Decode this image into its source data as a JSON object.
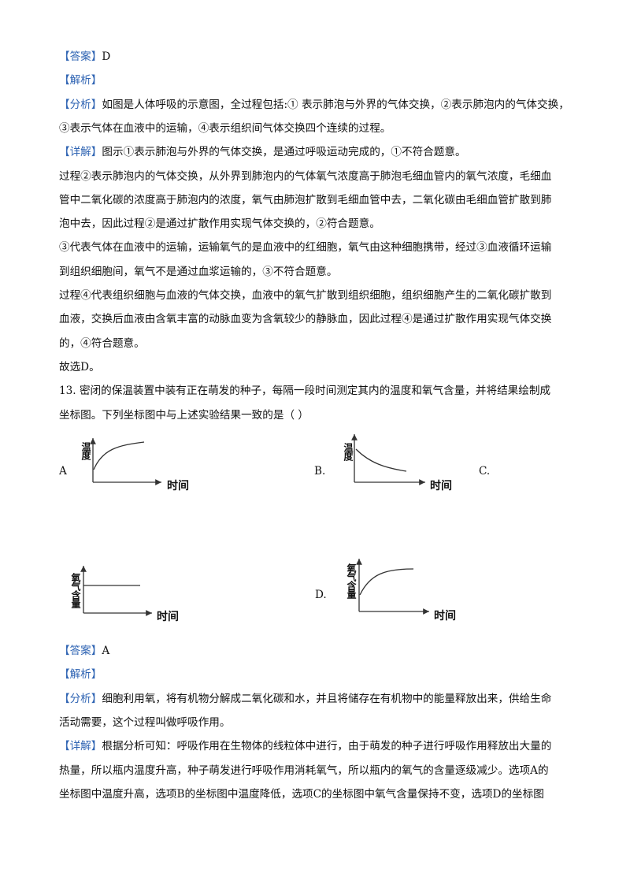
{
  "lines_before": [
    {
      "tag": "【答案】",
      "text": "D"
    },
    {
      "tag": "【解析】"
    },
    {
      "tag": "【分析】",
      "text": "如图是人体呼吸的示意图，全过程包括:① 表示肺泡与外界的气体交换，②表示肺泡内的气体交换，"
    },
    {
      "text": "③表示气体在血液中的运输，④表示组织间气体交换四个连续的过程。"
    },
    {
      "tag": "【详解】",
      "text": "图示①表示肺泡与外界的气体交换，是通过呼吸运动完成的，①不符合题意。"
    },
    {
      "text": "过程②表示肺泡内的气体交换，从外界到肺泡内的气体氧气浓度高于肺泡毛细血管内的氧气浓度，毛细血"
    },
    {
      "text": "管中二氧化碳的浓度高于肺泡内的浓度，氧气由肺泡扩散到毛细血管中去，二氧化碳由毛细血管扩散到肺"
    },
    {
      "text": "泡中去，因此过程②是通过扩散作用实现气体交换的，②符合题意。"
    },
    {
      "text": "③代表气体在血液中的运输，运输氧气的是血液中的红细胞，氧气由这种细胞携带，经过③血液循环运输"
    },
    {
      "text": "到组织细胞间，氧气不是通过血浆运输的，③不符合题意。"
    },
    {
      "text": "过程④代表组织细胞与血液的气体交换，血液中的氧气扩散到组织细胞，组织细胞产生的二氧化碳扩散到"
    },
    {
      "text": "血液，交换后血液由含氧丰富的动脉血变为含氧较少的静脉血，因此过程④是通过扩散作用实现气体交换"
    },
    {
      "text": "的，④符合题意。"
    },
    {
      "text": "故选D。"
    },
    {
      "text": "13. 密闭的保温装置中装有正在萌发的种子，每隔一段时间测定其内的温度和氧气含量，并将结果绘制成"
    },
    {
      "text": "坐标图。下列坐标图中与上述实验结果一致的是（        ）"
    }
  ],
  "graphs": [
    {
      "label": "A",
      "ylabel": "温度",
      "xlabel": "时间"
    },
    {
      "label": "B.",
      "ylabel": "温度",
      "xlabel": "时间"
    },
    {
      "label": "C.",
      "ylabel": "氧气含量",
      "xlabel": "时间"
    },
    {
      "label": "D.",
      "ylabel": "氧气含量",
      "xlabel": "时间"
    }
  ],
  "lines_after": [
    {
      "tag": "【答案】",
      "text": "A"
    },
    {
      "tag": "【解析】"
    },
    {
      "tag": "【分析】",
      "text": "细胞利用氧，将有机物分解成二氧化碳和水，并且将储存在有机物中的能量释放出来，供给生命"
    },
    {
      "text": "活动需要，这个过程叫做呼吸作用。"
    },
    {
      "tag": "【详解】",
      "text": "根据分析可知：呼吸作用在生物体的线粒体中进行，由于萌发的种子进行呼吸作用释放出大量的"
    },
    {
      "text": "热量，所以瓶内温度升高，种子萌发进行呼吸作用消耗氧气，所以瓶内的氧气的含量逐级减少。选项A的"
    },
    {
      "text": "坐标图中温度升高，选项B的坐标图中温度降低，选项C的坐标图中氧气含量保持不变，选项D的坐标图"
    }
  ]
}
